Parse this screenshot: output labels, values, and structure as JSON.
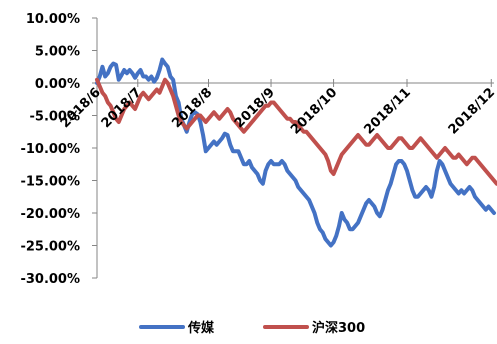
{
  "chart_data": {
    "type": "line",
    "title": "",
    "xlabel": "",
    "ylabel": "",
    "ylim": [
      -30,
      10
    ],
    "yticks": [
      10,
      5,
      0,
      -5,
      -10,
      -15,
      -20,
      -25,
      -30
    ],
    "ytick_labels": [
      "10.00%",
      "5.00%",
      "0.00%",
      "-5.00%",
      "-10.00%",
      "-15.00%",
      "-20.00%",
      "-25.00%",
      "-30.00%"
    ],
    "x_tick_labels": [
      "2018/6",
      "2018/7",
      "2018/8",
      "2018/9",
      "2018/10",
      "2018/11",
      "2018/12"
    ],
    "x_tick_index": [
      0,
      15,
      41,
      64,
      87,
      114,
      145
    ],
    "grid": false,
    "legend_position": "bottom",
    "series": [
      {
        "name": "传媒",
        "color": "#4472c4",
        "values": [
          0.0,
          1.0,
          2.5,
          1.0,
          1.5,
          2.5,
          3.0,
          2.8,
          0.5,
          1.2,
          2.0,
          1.5,
          2.0,
          1.5,
          0.8,
          1.5,
          2.0,
          1.0,
          1.0,
          0.5,
          1.0,
          0.2,
          0.8,
          2.0,
          3.6,
          3.0,
          2.5,
          1.0,
          0.5,
          -2.0,
          -3.0,
          -5.5,
          -6.5,
          -7.5,
          -6.0,
          -4.8,
          -4.5,
          -4.8,
          -6.0,
          -8.0,
          -10.5,
          -10.0,
          -9.5,
          -9.0,
          -9.5,
          -9.0,
          -8.5,
          -7.8,
          -8.0,
          -9.5,
          -10.5,
          -10.5,
          -10.5,
          -11.5,
          -12.5,
          -12.5,
          -12.0,
          -13.0,
          -13.5,
          -14.0,
          -15.0,
          -15.5,
          -13.5,
          -12.5,
          -12.0,
          -12.5,
          -12.5,
          -12.5,
          -12.0,
          -12.5,
          -13.5,
          -14.0,
          -14.5,
          -15.0,
          -16.0,
          -16.5,
          -17.0,
          -17.5,
          -18.0,
          -19.0,
          -20.0,
          -21.5,
          -22.5,
          -23.0,
          -24.0,
          -24.5,
          -25.0,
          -24.5,
          -23.5,
          -22.0,
          -20.0,
          -21.0,
          -21.5,
          -22.5,
          -22.5,
          -22.0,
          -21.5,
          -20.5,
          -19.5,
          -18.5,
          -18.0,
          -18.5,
          -19.0,
          -20.0,
          -20.5,
          -19.5,
          -18.0,
          -16.5,
          -15.5,
          -14.0,
          -12.5,
          -12.0,
          -12.0,
          -12.5,
          -13.5,
          -15.0,
          -16.5,
          -17.5,
          -17.5,
          -17.0,
          -16.5,
          -16.0,
          -16.5,
          -17.5,
          -16.0,
          -13.5,
          -12.0,
          -12.5,
          -13.5,
          -14.5,
          -15.5,
          -16.0,
          -16.5,
          -17.0,
          -16.5,
          -17.0,
          -16.5,
          -16.0,
          -16.5,
          -17.5,
          -18.0,
          -18.5,
          -19.0,
          -19.5,
          -19.0,
          -19.5,
          -20.0
        ]
      },
      {
        "name": "沪深300",
        "color": "#c0504d",
        "values": [
          0.5,
          -0.5,
          -1.5,
          -2.0,
          -3.0,
          -3.5,
          -4.5,
          -5.5,
          -6.0,
          -5.0,
          -4.0,
          -3.5,
          -3.0,
          -3.5,
          -4.0,
          -3.0,
          -2.0,
          -1.5,
          -2.0,
          -2.5,
          -2.0,
          -1.5,
          -1.0,
          -1.5,
          -0.5,
          0.5,
          0.0,
          -1.0,
          -2.0,
          -3.5,
          -5.0,
          -6.0,
          -6.5,
          -7.0,
          -6.5,
          -6.0,
          -5.5,
          -5.0,
          -5.0,
          -5.5,
          -6.0,
          -5.5,
          -5.0,
          -4.5,
          -5.0,
          -5.5,
          -5.0,
          -4.5,
          -4.0,
          -4.5,
          -5.5,
          -6.0,
          -6.5,
          -7.0,
          -7.5,
          -7.0,
          -6.5,
          -6.0,
          -5.5,
          -5.0,
          -4.5,
          -4.0,
          -3.5,
          -3.5,
          -3.0,
          -3.0,
          -3.5,
          -4.0,
          -4.5,
          -5.0,
          -5.5,
          -5.5,
          -6.0,
          -6.0,
          -6.5,
          -7.0,
          -7.5,
          -7.5,
          -8.0,
          -8.5,
          -9.0,
          -9.5,
          -10.0,
          -10.5,
          -11.0,
          -12.0,
          -13.5,
          -14.0,
          -13.0,
          -12.0,
          -11.0,
          -10.5,
          -10.0,
          -9.5,
          -9.0,
          -8.5,
          -8.0,
          -8.5,
          -9.0,
          -9.5,
          -9.5,
          -9.0,
          -8.5,
          -8.0,
          -8.5,
          -9.0,
          -9.5,
          -10.0,
          -10.0,
          -9.5,
          -9.0,
          -8.5,
          -8.5,
          -9.0,
          -9.5,
          -10.0,
          -10.0,
          -9.5,
          -9.0,
          -8.5,
          -9.0,
          -9.5,
          -10.0,
          -10.5,
          -11.0,
          -11.5,
          -11.0,
          -10.5,
          -10.0,
          -10.5,
          -11.0,
          -11.5,
          -11.5,
          -11.0,
          -11.5,
          -12.0,
          -12.5,
          -12.0,
          -11.5,
          -11.5,
          -12.0,
          -12.5,
          -13.0,
          -13.5,
          -14.0,
          -14.5,
          -15.0,
          -15.5,
          -15.2,
          -15.5
        ]
      }
    ]
  }
}
